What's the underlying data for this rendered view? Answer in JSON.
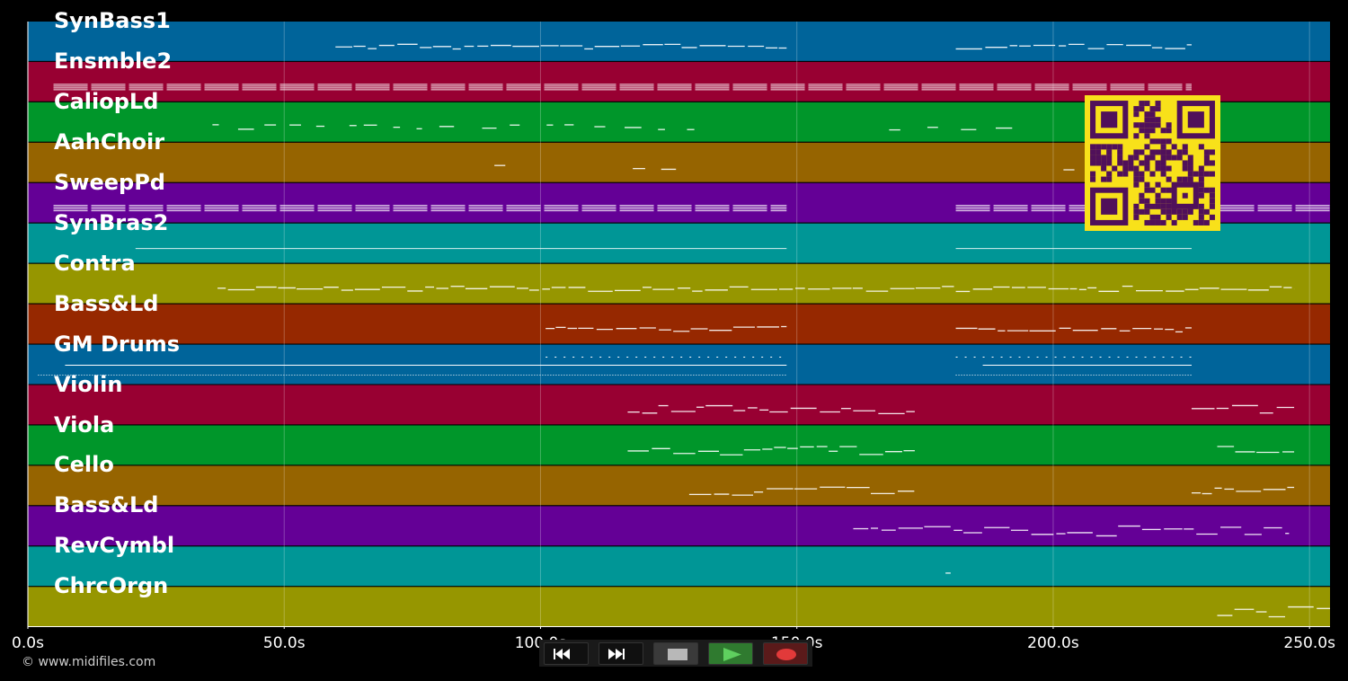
{
  "app": {
    "copyright": "© www.midifiles.com"
  },
  "timeline": {
    "max_seconds": 254,
    "tick_labels": [
      "0.0s",
      "50.0s",
      "100.0s",
      "150.0s",
      "200.0s",
      "250.0s"
    ],
    "tick_values": [
      0,
      50,
      100,
      150,
      200,
      250
    ]
  },
  "tracks": [
    {
      "name": "SynBass1",
      "color": "#00649a",
      "segments": [
        [
          60,
          148
        ],
        [
          181,
          227
        ]
      ],
      "style": "dashed"
    },
    {
      "name": "Ensmble2",
      "color": "#980032",
      "segments": [
        [
          5,
          227
        ]
      ],
      "style": "dense"
    },
    {
      "name": "CaliopLd",
      "color": "#00962a",
      "segments": [
        [
          36,
          130
        ],
        [
          168,
          192
        ]
      ],
      "style": "sparse"
    },
    {
      "name": "AahChoir",
      "color": "#966400",
      "segments": [
        [
          91,
          96
        ],
        [
          118,
          130
        ],
        [
          202,
          206
        ]
      ],
      "style": "sparse"
    },
    {
      "name": "SweepPd",
      "color": "#640096",
      "segments": [
        [
          5,
          148
        ],
        [
          181,
          254
        ]
      ],
      "style": "dense"
    },
    {
      "name": "SynBras2",
      "color": "#009696",
      "segments": [
        [
          21,
          148
        ],
        [
          181,
          227
        ]
      ],
      "style": "line"
    },
    {
      "name": "Contra",
      "color": "#969600",
      "segments": [
        [
          37,
          247
        ]
      ],
      "style": "dashed"
    },
    {
      "name": "Bass&Ld",
      "color": "#962800",
      "segments": [
        [
          101,
          148
        ],
        [
          181,
          227
        ]
      ],
      "style": "dashed"
    },
    {
      "name": "GM Drums",
      "color": "#00649a",
      "segments": [
        [
          2,
          148
        ],
        [
          181,
          227
        ]
      ],
      "style": "drums"
    },
    {
      "name": "Violin",
      "color": "#980032",
      "segments": [
        [
          117,
          173
        ],
        [
          227,
          247
        ]
      ],
      "style": "melody"
    },
    {
      "name": "Viola",
      "color": "#00962a",
      "segments": [
        [
          117,
          173
        ],
        [
          232,
          247
        ]
      ],
      "style": "melody"
    },
    {
      "name": "Cello",
      "color": "#966400",
      "segments": [
        [
          129,
          173
        ],
        [
          227,
          247
        ]
      ],
      "style": "melody"
    },
    {
      "name": "Bass&Ld",
      "color": "#640096",
      "segments": [
        [
          161,
          246
        ]
      ],
      "style": "wave"
    },
    {
      "name": "RevCymbl",
      "color": "#009696",
      "segments": [
        [
          179,
          180
        ]
      ],
      "style": "sparse"
    },
    {
      "name": "ChrcOrgn",
      "color": "#969600",
      "segments": [
        [
          232,
          254
        ]
      ],
      "style": "wave"
    }
  ],
  "transport": {
    "buttons": [
      {
        "name": "rewind-button",
        "icon": "rewind-icon",
        "color": "#101010"
      },
      {
        "name": "fast-forward-button",
        "icon": "fast-forward-icon",
        "color": "#101010"
      },
      {
        "name": "stop-button",
        "icon": "stop-icon",
        "color": "#3a3a3a"
      },
      {
        "name": "play-button",
        "icon": "play-icon",
        "color": "#2f7a2f"
      },
      {
        "name": "record-button",
        "icon": "record-icon",
        "color": "#5a1a1a"
      }
    ]
  },
  "qr_code": {
    "icon": "qr-code-icon",
    "background": "#f8e11a",
    "foreground": "#50105a"
  }
}
